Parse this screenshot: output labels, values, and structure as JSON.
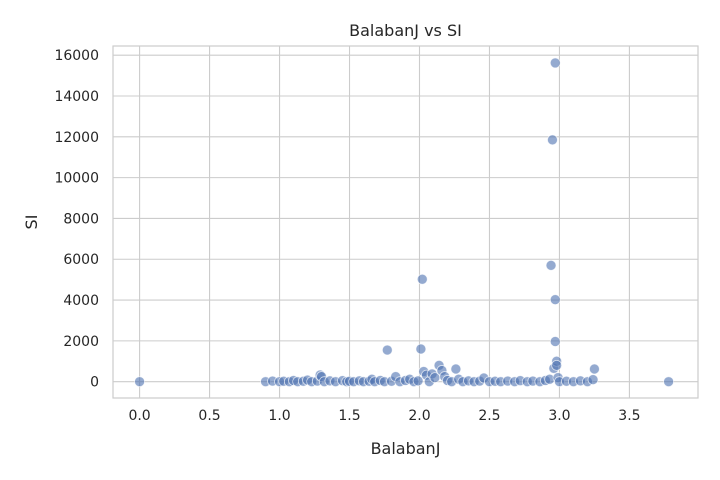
{
  "chart_data": {
    "type": "scatter",
    "title": "BalabanJ vs SI",
    "xlabel": "BalabanJ",
    "ylabel": "SI",
    "xlim": [
      -0.19,
      3.99
    ],
    "ylim": [
      -800,
      16450
    ],
    "xticks": [
      0.0,
      0.5,
      1.0,
      1.5,
      2.0,
      2.5,
      3.0,
      3.5
    ],
    "xtick_labels": [
      "0.0",
      "0.5",
      "1.0",
      "1.5",
      "2.0",
      "2.5",
      "3.0",
      "3.5"
    ],
    "yticks": [
      0,
      2000,
      4000,
      6000,
      8000,
      10000,
      12000,
      14000,
      16000
    ],
    "ytick_labels": [
      "0",
      "2000",
      "4000",
      "6000",
      "8000",
      "10000",
      "12000",
      "14000",
      "16000"
    ],
    "grid": true,
    "point_color": "#4c72b0",
    "points": [
      {
        "x": 0.0,
        "y": 0
      },
      {
        "x": 0.9,
        "y": 0
      },
      {
        "x": 0.95,
        "y": 30
      },
      {
        "x": 1.0,
        "y": 0
      },
      {
        "x": 1.03,
        "y": 20
      },
      {
        "x": 1.07,
        "y": 0
      },
      {
        "x": 1.1,
        "y": 60
      },
      {
        "x": 1.13,
        "y": 0
      },
      {
        "x": 1.17,
        "y": 20
      },
      {
        "x": 1.2,
        "y": 80
      },
      {
        "x": 1.23,
        "y": 0
      },
      {
        "x": 1.27,
        "y": 30
      },
      {
        "x": 1.29,
        "y": 330
      },
      {
        "x": 1.3,
        "y": 250
      },
      {
        "x": 1.32,
        "y": 0
      },
      {
        "x": 1.36,
        "y": 40
      },
      {
        "x": 1.4,
        "y": 0
      },
      {
        "x": 1.45,
        "y": 50
      },
      {
        "x": 1.48,
        "y": 0
      },
      {
        "x": 1.5,
        "y": 20
      },
      {
        "x": 1.53,
        "y": 0
      },
      {
        "x": 1.57,
        "y": 40
      },
      {
        "x": 1.6,
        "y": 0
      },
      {
        "x": 1.64,
        "y": 20
      },
      {
        "x": 1.66,
        "y": 120
      },
      {
        "x": 1.68,
        "y": 0
      },
      {
        "x": 1.72,
        "y": 60
      },
      {
        "x": 1.75,
        "y": 0
      },
      {
        "x": 1.77,
        "y": 1550
      },
      {
        "x": 1.8,
        "y": 20
      },
      {
        "x": 1.83,
        "y": 250
      },
      {
        "x": 1.86,
        "y": 0
      },
      {
        "x": 1.9,
        "y": 60
      },
      {
        "x": 1.93,
        "y": 120
      },
      {
        "x": 1.96,
        "y": 0
      },
      {
        "x": 1.99,
        "y": 40
      },
      {
        "x": 2.01,
        "y": 1600
      },
      {
        "x": 2.02,
        "y": 5020
      },
      {
        "x": 2.03,
        "y": 500
      },
      {
        "x": 2.05,
        "y": 320
      },
      {
        "x": 2.07,
        "y": 0
      },
      {
        "x": 2.09,
        "y": 380
      },
      {
        "x": 2.11,
        "y": 200
      },
      {
        "x": 2.14,
        "y": 800
      },
      {
        "x": 2.16,
        "y": 550
      },
      {
        "x": 2.18,
        "y": 250
      },
      {
        "x": 2.2,
        "y": 60
      },
      {
        "x": 2.23,
        "y": 0
      },
      {
        "x": 2.26,
        "y": 620
      },
      {
        "x": 2.28,
        "y": 120
      },
      {
        "x": 2.31,
        "y": 0
      },
      {
        "x": 2.35,
        "y": 40
      },
      {
        "x": 2.39,
        "y": 0
      },
      {
        "x": 2.43,
        "y": 30
      },
      {
        "x": 2.46,
        "y": 180
      },
      {
        "x": 2.5,
        "y": 0
      },
      {
        "x": 2.54,
        "y": 20
      },
      {
        "x": 2.58,
        "y": 0
      },
      {
        "x": 2.63,
        "y": 30
      },
      {
        "x": 2.68,
        "y": 0
      },
      {
        "x": 2.72,
        "y": 50
      },
      {
        "x": 2.77,
        "y": 0
      },
      {
        "x": 2.81,
        "y": 30
      },
      {
        "x": 2.86,
        "y": 0
      },
      {
        "x": 2.9,
        "y": 60
      },
      {
        "x": 2.93,
        "y": 120
      },
      {
        "x": 2.94,
        "y": 5700
      },
      {
        "x": 2.95,
        "y": 11850
      },
      {
        "x": 2.96,
        "y": 650
      },
      {
        "x": 2.97,
        "y": 15620
      },
      {
        "x": 2.97,
        "y": 4020
      },
      {
        "x": 2.97,
        "y": 1970
      },
      {
        "x": 2.98,
        "y": 1000
      },
      {
        "x": 2.98,
        "y": 800
      },
      {
        "x": 2.99,
        "y": 200
      },
      {
        "x": 3.0,
        "y": 0
      },
      {
        "x": 3.05,
        "y": 20
      },
      {
        "x": 3.1,
        "y": 0
      },
      {
        "x": 3.15,
        "y": 40
      },
      {
        "x": 3.2,
        "y": 0
      },
      {
        "x": 3.24,
        "y": 100
      },
      {
        "x": 3.25,
        "y": 620
      },
      {
        "x": 3.78,
        "y": 0
      }
    ]
  }
}
